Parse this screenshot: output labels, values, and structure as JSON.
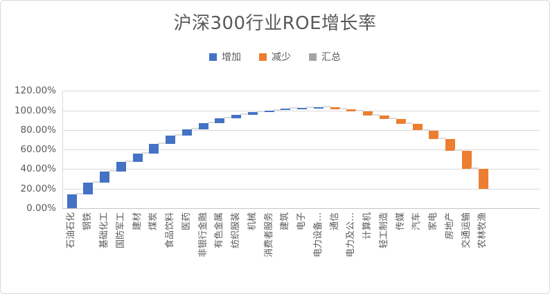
{
  "title": "沪深300行业ROE增长率",
  "legend": [
    {
      "label": "增加",
      "color": "#4472C4"
    },
    {
      "label": "减少",
      "color": "#ED7D31"
    },
    {
      "label": "汇总",
      "color": "#A5A5A5"
    }
  ],
  "y_axis": {
    "ticks": [
      "120.00%",
      "100.00%",
      "80.00%",
      "60.00%",
      "40.00%",
      "20.00%",
      "0.00%"
    ],
    "tick_values": [
      120,
      100,
      80,
      60,
      40,
      20,
      0
    ]
  },
  "chart_data": {
    "type": "bar",
    "subtype": "waterfall",
    "title": "沪深300行业ROE增长率",
    "xlabel": "",
    "ylabel": "",
    "ylim": [
      0,
      120
    ],
    "ytick_step": 20,
    "ytick_format": "percent",
    "grid": true,
    "legend_position": "top",
    "legend_entries": [
      "增加",
      "减少",
      "汇总"
    ],
    "categories": [
      "石油石化",
      "钢铁",
      "基础化工",
      "国防军工",
      "建材",
      "煤炭",
      "食品饮料",
      "医药",
      "非银行金融",
      "有色金属",
      "纺织服装",
      "机械",
      "消费者服务",
      "建筑",
      "电子",
      "电力设备…",
      "通信",
      "电力及公…",
      "计算机",
      "轻工制造",
      "传媒",
      "汽车",
      "家电",
      "房地产",
      "交通运输",
      "农林牧渔"
    ],
    "bars": [
      {
        "category": "石油石化",
        "start": 0,
        "end": 14,
        "series": "增加"
      },
      {
        "category": "钢铁",
        "start": 14,
        "end": 26,
        "series": "增加"
      },
      {
        "category": "基础化工",
        "start": 26,
        "end": 37.5,
        "series": "增加"
      },
      {
        "category": "国防军工",
        "start": 37.5,
        "end": 47.5,
        "series": "增加"
      },
      {
        "category": "建材",
        "start": 47.5,
        "end": 56,
        "series": "增加"
      },
      {
        "category": "煤炭",
        "start": 56,
        "end": 66,
        "series": "增加"
      },
      {
        "category": "食品饮料",
        "start": 66,
        "end": 74,
        "series": "增加"
      },
      {
        "category": "医药",
        "start": 74,
        "end": 80.5,
        "series": "增加"
      },
      {
        "category": "非银行金融",
        "start": 80.5,
        "end": 87,
        "series": "增加"
      },
      {
        "category": "有色金属",
        "start": 87,
        "end": 92,
        "series": "增加"
      },
      {
        "category": "纺织服装",
        "start": 92,
        "end": 95.5,
        "series": "增加"
      },
      {
        "category": "机械",
        "start": 95.5,
        "end": 98,
        "series": "增加"
      },
      {
        "category": "消费者服务",
        "start": 98,
        "end": 100,
        "series": "增加"
      },
      {
        "category": "建筑",
        "start": 100,
        "end": 101.5,
        "series": "增加"
      },
      {
        "category": "电子",
        "start": 101.5,
        "end": 102.4,
        "series": "增加"
      },
      {
        "category": "电力设备…",
        "start": 102.4,
        "end": 103,
        "series": "增加"
      },
      {
        "category": "通信",
        "start": 103,
        "end": 101.4,
        "series": "减少"
      },
      {
        "category": "电力及公…",
        "start": 101.4,
        "end": 98.8,
        "series": "减少"
      },
      {
        "category": "计算机",
        "start": 98.8,
        "end": 95,
        "series": "减少"
      },
      {
        "category": "轻工制造",
        "start": 95,
        "end": 91,
        "series": "减少"
      },
      {
        "category": "传媒",
        "start": 91,
        "end": 86,
        "series": "减少"
      },
      {
        "category": "汽车",
        "start": 86,
        "end": 79.5,
        "series": "减少"
      },
      {
        "category": "家电",
        "start": 79.5,
        "end": 70.5,
        "series": "减少"
      },
      {
        "category": "房地产",
        "start": 70.5,
        "end": 59,
        "series": "减少"
      },
      {
        "category": "交通运输",
        "start": 59,
        "end": 40.5,
        "series": "减少"
      },
      {
        "category": "农林牧渔",
        "start": 40.5,
        "end": 20,
        "series": "减少"
      }
    ]
  },
  "colors": {
    "increase": "#4472C4",
    "decrease": "#ED7D31",
    "total": "#A5A5A5",
    "gridline": "#D9D9D9",
    "connector": "#DCDCDC",
    "axis_text": "#595959"
  }
}
